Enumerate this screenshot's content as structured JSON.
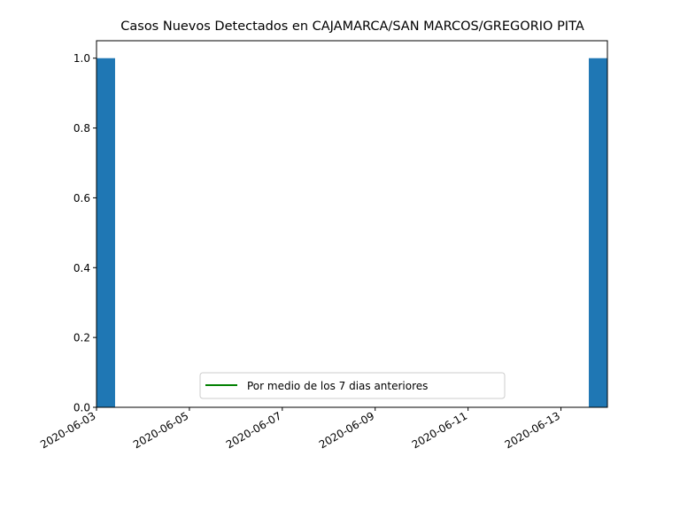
{
  "chart_data": {
    "type": "bar",
    "title": "Casos Nuevos Detectados en CAJAMARCA/SAN MARCOS/GREGORIO PITA",
    "xlabel": "",
    "ylabel": "",
    "x_range": [
      "2020-06-03",
      "2020-06-14"
    ],
    "xticks": [
      "2020-06-03",
      "2020-06-05",
      "2020-06-07",
      "2020-06-09",
      "2020-06-11",
      "2020-06-13"
    ],
    "ylim": [
      0,
      1.05
    ],
    "yticks": [
      "0.0",
      "0.2",
      "0.4",
      "0.6",
      "0.8",
      "1.0"
    ],
    "bars": [
      {
        "date": "2020-06-03",
        "value": 1
      },
      {
        "date": "2020-06-14",
        "value": 1
      }
    ],
    "bar_color": "#1f77b4",
    "series": [
      {
        "name": "Por medio de los 7 dias anteriores",
        "color": "#008000",
        "values": []
      }
    ],
    "legend_position": "lower-center",
    "grid": false
  }
}
